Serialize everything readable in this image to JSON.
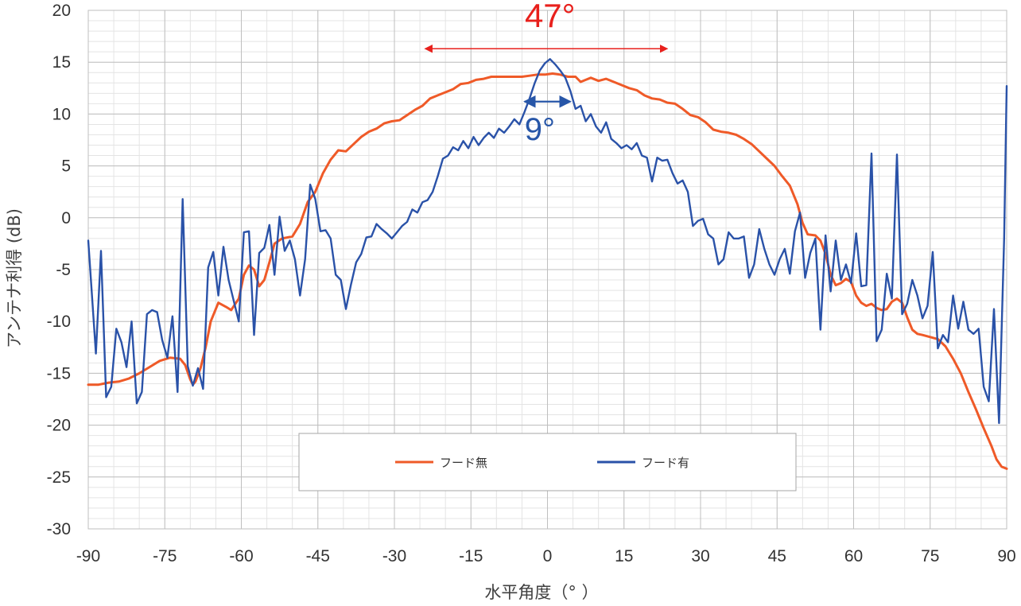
{
  "chart_data": {
    "type": "line",
    "xlabel": "水平角度（°  ）",
    "ylabel": "アンテナ利得 (dB)",
    "xlim": [
      -90,
      90
    ],
    "ylim": [
      -30,
      20
    ],
    "x_ticks": [
      "-90",
      "-75",
      "-60",
      "-45",
      "-30",
      "-15",
      "0",
      "15",
      "30",
      "45",
      "60",
      "75",
      "90"
    ],
    "y_ticks": [
      "20",
      "15",
      "10",
      "5",
      "0",
      "-5",
      "-10",
      "-15",
      "-20",
      "-25",
      "-30"
    ],
    "grid": true,
    "legend_position": "bottom-center",
    "annotations": [
      {
        "text": "47°",
        "color": "#e8201c",
        "x_from": -24,
        "x_to": 23.5,
        "y": 16.3,
        "label_x": 0.5,
        "label_y": 18.4
      },
      {
        "text": "9°",
        "color": "#2756a8",
        "x_from": -4.5,
        "x_to": 4.5,
        "y": 11.2,
        "label_x": -1.5,
        "label_y": 7.5
      }
    ],
    "series": [
      {
        "name": "フード無",
        "color": "#ef5a28",
        "points": [
          [
            -90,
            -16.1
          ],
          [
            -88,
            -16.1
          ],
          [
            -86,
            -15.9
          ],
          [
            -84,
            -15.8
          ],
          [
            -82,
            -15.5
          ],
          [
            -80,
            -15
          ],
          [
            -78,
            -14.4
          ],
          [
            -76,
            -13.8
          ],
          [
            -74,
            -13.5
          ],
          [
            -72,
            -13.6
          ],
          [
            -71,
            -14.2
          ],
          [
            -70,
            -15.6
          ],
          [
            -69.5,
            -16.1
          ],
          [
            -69,
            -15.8
          ],
          [
            -68,
            -14.5
          ],
          [
            -67,
            -12.5
          ],
          [
            -66,
            -10
          ],
          [
            -64.5,
            -8.2
          ],
          [
            -63,
            -8.6
          ],
          [
            -62,
            -8.9
          ],
          [
            -60.5,
            -7.8
          ],
          [
            -59.5,
            -5.5
          ],
          [
            -58.5,
            -4.6
          ],
          [
            -57.5,
            -5
          ],
          [
            -56.5,
            -6.6
          ],
          [
            -55.5,
            -6
          ],
          [
            -54.5,
            -4.3
          ],
          [
            -53.5,
            -2.5
          ],
          [
            -52,
            -2
          ],
          [
            -50,
            -1.8
          ],
          [
            -48.5,
            -0.6
          ],
          [
            -47,
            1.5
          ],
          [
            -45.5,
            2.5
          ],
          [
            -44,
            4.3
          ],
          [
            -42.5,
            5.6
          ],
          [
            -41,
            6.5
          ],
          [
            -39.5,
            6.4
          ],
          [
            -38,
            7.1
          ],
          [
            -36.5,
            7.8
          ],
          [
            -35,
            8.3
          ],
          [
            -33.5,
            8.6
          ],
          [
            -32,
            9.1
          ],
          [
            -30.5,
            9.3
          ],
          [
            -29,
            9.4
          ],
          [
            -27.5,
            9.9
          ],
          [
            -26,
            10.4
          ],
          [
            -24.5,
            10.8
          ],
          [
            -23,
            11.5
          ],
          [
            -21.5,
            11.8
          ],
          [
            -20,
            12.1
          ],
          [
            -18.5,
            12.4
          ],
          [
            -17,
            12.9
          ],
          [
            -15.5,
            13
          ],
          [
            -14,
            13.3
          ],
          [
            -12.5,
            13.4
          ],
          [
            -11,
            13.6
          ],
          [
            -9.5,
            13.6
          ],
          [
            -8,
            13.6
          ],
          [
            -6.5,
            13.6
          ],
          [
            -5,
            13.6
          ],
          [
            -3.5,
            13.7
          ],
          [
            -2,
            13.8
          ],
          [
            -0.5,
            13.8
          ],
          [
            1,
            13.9
          ],
          [
            2.5,
            13.8
          ],
          [
            4,
            13.6
          ],
          [
            5.5,
            13.6
          ],
          [
            6.5,
            13.1
          ],
          [
            7.5,
            13.3
          ],
          [
            8.5,
            13.5
          ],
          [
            10,
            13.2
          ],
          [
            11.5,
            13.4
          ],
          [
            13,
            13.1
          ],
          [
            14.5,
            12.8
          ],
          [
            16,
            12.5
          ],
          [
            17.5,
            12.3
          ],
          [
            19,
            11.8
          ],
          [
            20.5,
            11.5
          ],
          [
            22,
            11.4
          ],
          [
            23.5,
            11.1
          ],
          [
            25,
            11
          ],
          [
            26.5,
            10.5
          ],
          [
            28,
            9.9
          ],
          [
            29.5,
            9.7
          ],
          [
            31,
            9.2
          ],
          [
            32.5,
            8.5
          ],
          [
            34,
            8.3
          ],
          [
            35.5,
            8.2
          ],
          [
            37,
            8
          ],
          [
            38.5,
            7.6
          ],
          [
            40,
            7.1
          ],
          [
            41.5,
            6.4
          ],
          [
            43,
            5.7
          ],
          [
            44.5,
            5
          ],
          [
            46,
            4
          ],
          [
            47.5,
            3.1
          ],
          [
            49,
            1.3
          ],
          [
            50,
            -0.5
          ],
          [
            51,
            -1.6
          ],
          [
            52.5,
            -1.7
          ],
          [
            53.5,
            -2.2
          ],
          [
            54.5,
            -3.5
          ],
          [
            55.5,
            -5.5
          ],
          [
            56.5,
            -6.5
          ],
          [
            57.5,
            -6.3
          ],
          [
            58.5,
            -5.9
          ],
          [
            59.5,
            -6.2
          ],
          [
            60.5,
            -7.5
          ],
          [
            61.5,
            -8.2
          ],
          [
            62.5,
            -8.5
          ],
          [
            63.5,
            -8.3
          ],
          [
            64.5,
            -8.7
          ],
          [
            65.5,
            -8.9
          ],
          [
            66.5,
            -8.8
          ],
          [
            67.5,
            -8.1
          ],
          [
            68.5,
            -7.8
          ],
          [
            69.5,
            -8.2
          ],
          [
            70.5,
            -9.6
          ],
          [
            71.5,
            -10.8
          ],
          [
            72.5,
            -11.2
          ],
          [
            73.5,
            -11.3
          ],
          [
            75,
            -11.5
          ],
          [
            76.5,
            -11.7
          ],
          [
            78,
            -12.4
          ],
          [
            79.5,
            -13.6
          ],
          [
            81,
            -15
          ],
          [
            82.5,
            -16.8
          ],
          [
            84,
            -18.5
          ],
          [
            85.5,
            -20.3
          ],
          [
            87,
            -22
          ],
          [
            88,
            -23.3
          ],
          [
            89,
            -24
          ],
          [
            90,
            -24.2
          ]
        ]
      },
      {
        "name": "フード有",
        "color": "#2a52a8",
        "points": [
          [
            -90,
            -2.2
          ],
          [
            -88.5,
            -13.1
          ],
          [
            -87.5,
            -3.2
          ],
          [
            -86.5,
            -17.3
          ],
          [
            -85.5,
            -16.3
          ],
          [
            -84.5,
            -10.7
          ],
          [
            -83.5,
            -12
          ],
          [
            -82.5,
            -14.4
          ],
          [
            -81.5,
            -10
          ],
          [
            -80.5,
            -17.9
          ],
          [
            -79.5,
            -16.8
          ],
          [
            -78.5,
            -9.3
          ],
          [
            -77.5,
            -8.9
          ],
          [
            -76.5,
            -9.1
          ],
          [
            -75.5,
            -11.8
          ],
          [
            -74.5,
            -13.5
          ],
          [
            -73.5,
            -9.5
          ],
          [
            -72.5,
            -16.8
          ],
          [
            -71.5,
            1.8
          ],
          [
            -70.5,
            -14.3
          ],
          [
            -69.5,
            -16.2
          ],
          [
            -68.5,
            -14.5
          ],
          [
            -67.5,
            -16.5
          ],
          [
            -66.5,
            -4.8
          ],
          [
            -65.5,
            -3.3
          ],
          [
            -64.5,
            -7.5
          ],
          [
            -63.5,
            -2.8
          ],
          [
            -62.5,
            -6
          ],
          [
            -61.5,
            -8
          ],
          [
            -60.5,
            -10
          ],
          [
            -59.5,
            -1.4
          ],
          [
            -58.5,
            -1.3
          ],
          [
            -57.5,
            -11.3
          ],
          [
            -56.5,
            -3.4
          ],
          [
            -55.5,
            -2.9
          ],
          [
            -54.5,
            -0.7
          ],
          [
            -53.5,
            -5.5
          ],
          [
            -52.5,
            0.1
          ],
          [
            -51.5,
            -3.2
          ],
          [
            -50.5,
            -2.2
          ],
          [
            -49.5,
            -4
          ],
          [
            -48.5,
            -7.5
          ],
          [
            -47.5,
            -4
          ],
          [
            -46.5,
            3.2
          ],
          [
            -45.5,
            1.8
          ],
          [
            -44.5,
            -1.3
          ],
          [
            -43.5,
            -1.2
          ],
          [
            -42.5,
            -2
          ],
          [
            -41.5,
            -5.5
          ],
          [
            -40.5,
            -6
          ],
          [
            -39.5,
            -8.8
          ],
          [
            -38.5,
            -6.4
          ],
          [
            -37.5,
            -4.3
          ],
          [
            -36.5,
            -3.5
          ],
          [
            -35.5,
            -1.9
          ],
          [
            -34.5,
            -1.8
          ],
          [
            -33.5,
            -0.6
          ],
          [
            -32.5,
            -1.1
          ],
          [
            -31.5,
            -1.5
          ],
          [
            -30.5,
            -2
          ],
          [
            -29.5,
            -1.4
          ],
          [
            -28.5,
            -0.8
          ],
          [
            -27.5,
            -0.4
          ],
          [
            -26.5,
            0.8
          ],
          [
            -25.5,
            0.5
          ],
          [
            -24.5,
            1.5
          ],
          [
            -23.5,
            1.7
          ],
          [
            -22.5,
            2.5
          ],
          [
            -21.5,
            4
          ],
          [
            -20.5,
            5.7
          ],
          [
            -19.5,
            6
          ],
          [
            -18.5,
            6.8
          ],
          [
            -17.5,
            6.5
          ],
          [
            -16.5,
            7.4
          ],
          [
            -15.5,
            6.7
          ],
          [
            -14.5,
            7.8
          ],
          [
            -13.5,
            7
          ],
          [
            -12.5,
            7.7
          ],
          [
            -11.5,
            8.2
          ],
          [
            -10.5,
            7.7
          ],
          [
            -9.5,
            8.6
          ],
          [
            -8.5,
            8.2
          ],
          [
            -7.5,
            8.8
          ],
          [
            -6.5,
            9.5
          ],
          [
            -5.5,
            9
          ],
          [
            -4.5,
            10.2
          ],
          [
            -3.5,
            11.5
          ],
          [
            -2.5,
            13
          ],
          [
            -1.5,
            14.2
          ],
          [
            -0.5,
            14.9
          ],
          [
            0.5,
            15.3
          ],
          [
            1.5,
            14.8
          ],
          [
            2.5,
            14.2
          ],
          [
            3.5,
            13.5
          ],
          [
            4.5,
            12.2
          ],
          [
            5.5,
            10.5
          ],
          [
            6.5,
            10.8
          ],
          [
            7.5,
            9.3
          ],
          [
            8.5,
            10
          ],
          [
            9.5,
            8.8
          ],
          [
            10.5,
            8.2
          ],
          [
            11.5,
            9.2
          ],
          [
            12.5,
            7.6
          ],
          [
            13.5,
            7.2
          ],
          [
            14.5,
            6.7
          ],
          [
            15.5,
            7
          ],
          [
            16.5,
            6.6
          ],
          [
            17.5,
            7.2
          ],
          [
            18.5,
            6
          ],
          [
            19.5,
            5.8
          ],
          [
            20.5,
            3.5
          ],
          [
            21.5,
            5.8
          ],
          [
            22.5,
            5.5
          ],
          [
            23.5,
            5.6
          ],
          [
            24.5,
            4.3
          ],
          [
            25.5,
            3.3
          ],
          [
            26.5,
            3.6
          ],
          [
            27.5,
            2.5
          ],
          [
            28.5,
            -0.8
          ],
          [
            29.5,
            -0.3
          ],
          [
            30.5,
            -0.1
          ],
          [
            31.5,
            -1.6
          ],
          [
            32.5,
            -2
          ],
          [
            33.5,
            -4.5
          ],
          [
            34.5,
            -4
          ],
          [
            35.5,
            -1.4
          ],
          [
            36.5,
            -2
          ],
          [
            37.5,
            -2
          ],
          [
            38.5,
            -1.8
          ],
          [
            39.5,
            -5.8
          ],
          [
            40.5,
            -4.5
          ],
          [
            41.5,
            -1.1
          ],
          [
            42.5,
            -3
          ],
          [
            43.5,
            -4.5
          ],
          [
            44.5,
            -5.5
          ],
          [
            45.5,
            -4
          ],
          [
            46.5,
            -3
          ],
          [
            47.5,
            -5.4
          ],
          [
            48.5,
            -1.3
          ],
          [
            49.5,
            0.5
          ],
          [
            50.5,
            -5.8
          ],
          [
            51.5,
            -3.4
          ],
          [
            52.5,
            -2
          ],
          [
            53.5,
            -10.8
          ],
          [
            54.5,
            -1.7
          ],
          [
            55.5,
            -7.1
          ],
          [
            56.5,
            -2.2
          ],
          [
            57.5,
            -6
          ],
          [
            58.5,
            -4.5
          ],
          [
            59.5,
            -6.3
          ],
          [
            60.5,
            -1.5
          ],
          [
            61.5,
            -6.6
          ],
          [
            62.5,
            -6.5
          ],
          [
            63.5,
            6.2
          ],
          [
            64.5,
            -11.9
          ],
          [
            65.5,
            -10.8
          ],
          [
            66.5,
            -5.4
          ],
          [
            67.5,
            -7.8
          ],
          [
            68.5,
            6.1
          ],
          [
            69.5,
            -9.3
          ],
          [
            70.5,
            -8.3
          ],
          [
            71.5,
            -6
          ],
          [
            72.5,
            -7.5
          ],
          [
            73.5,
            -9.7
          ],
          [
            74.5,
            -8.5
          ],
          [
            75.5,
            -3.3
          ],
          [
            76.5,
            -12.6
          ],
          [
            77.5,
            -11.3
          ],
          [
            78.5,
            -12
          ],
          [
            79.5,
            -7.5
          ],
          [
            80.5,
            -10.7
          ],
          [
            81.5,
            -8.1
          ],
          [
            82.5,
            -10.8
          ],
          [
            83.5,
            -11.2
          ],
          [
            84.5,
            -10.7
          ],
          [
            85.5,
            -16.3
          ],
          [
            86.5,
            -17.7
          ],
          [
            87.5,
            -8.8
          ],
          [
            88.5,
            -19.8
          ],
          [
            89.5,
            -2
          ],
          [
            90,
            12.7
          ]
        ]
      }
    ]
  }
}
